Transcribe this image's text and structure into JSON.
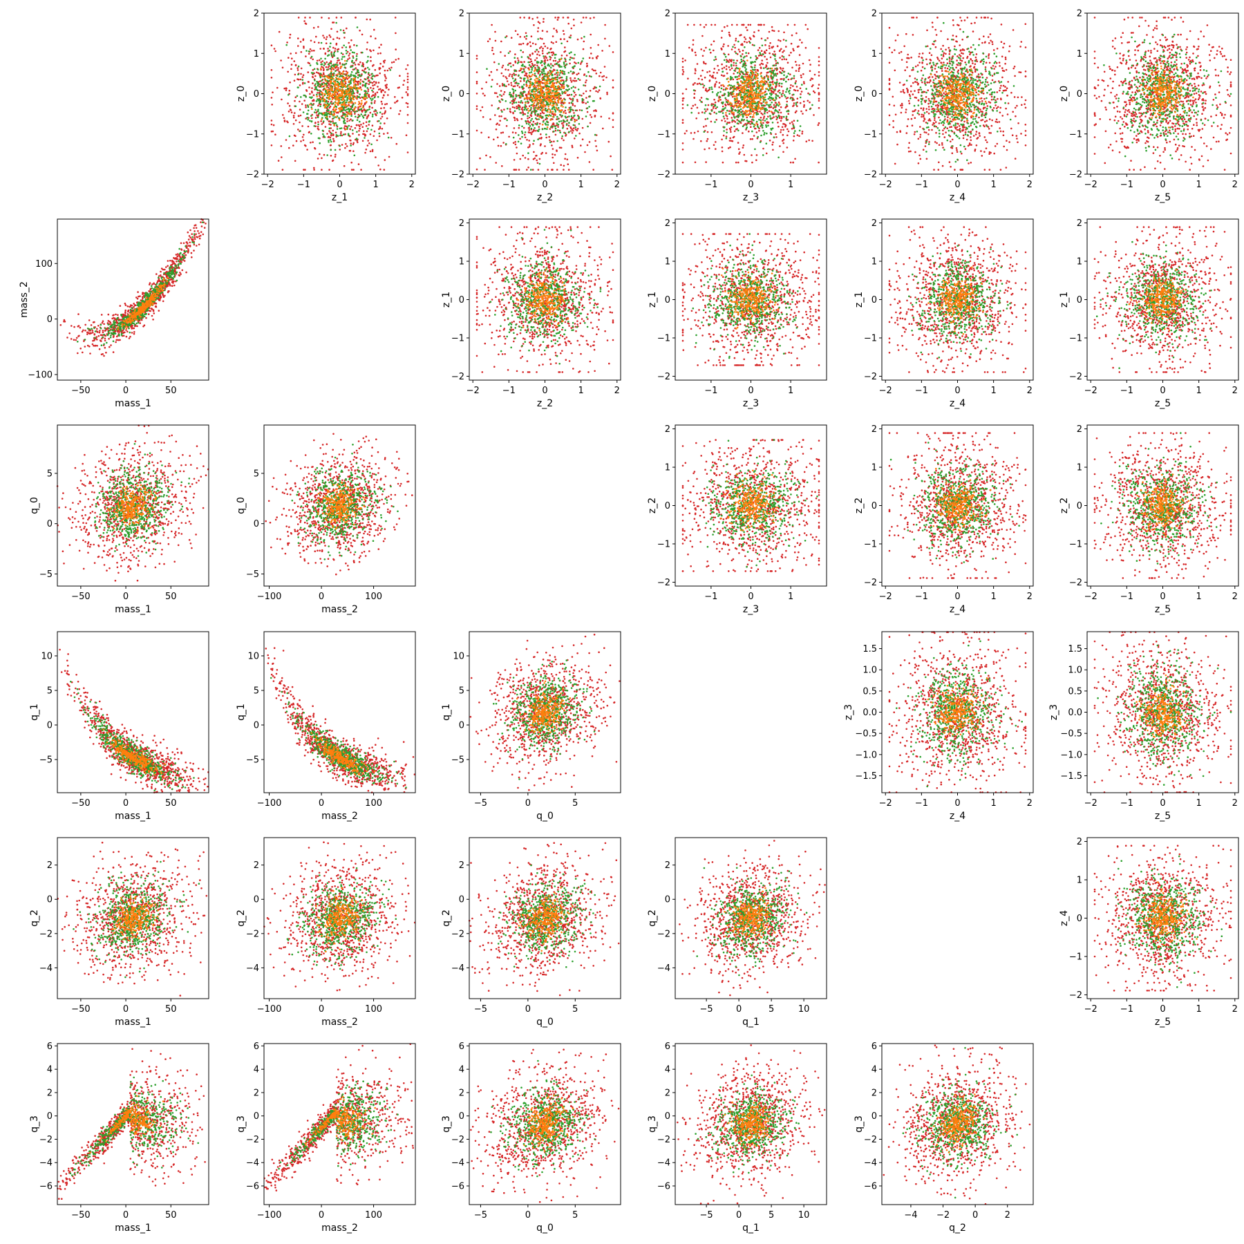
{
  "colors": {
    "outer": "#d62728",
    "middle": "#2ca02c",
    "inner": "#ff7f0e",
    "axes": "#000000",
    "background": "#ffffff"
  },
  "chart_data": {
    "type": "scatter",
    "grid": false,
    "legend": "none",
    "layout": "pair-plot",
    "note_values": "point clouds are approximations of the depicted distributions",
    "variables": {
      "mass_1": {
        "label": "mass_1",
        "lim": [
          -76,
          92
        ],
        "ticks": [
          -50,
          0,
          50
        ]
      },
      "mass_2": {
        "label": "mass_2",
        "lim": [
          -110,
          180
        ],
        "ticks": [
          -100,
          0,
          100
        ]
      },
      "q_0": {
        "label": "q_0",
        "lim": [
          -6.2,
          9.8
        ],
        "ticks": [
          -5,
          0,
          5
        ]
      },
      "q_1": {
        "label": "q_1",
        "lim": [
          -9.8,
          13.5
        ],
        "ticks": [
          -5,
          0,
          5,
          10
        ]
      },
      "q_2": {
        "label": "q_2",
        "lim": [
          -5.8,
          3.6
        ],
        "ticks": [
          -4,
          -2,
          0,
          2
        ]
      },
      "q_3": {
        "label": "q_3",
        "lim": [
          -7.6,
          6.2
        ],
        "ticks": [
          -6,
          -4,
          -2,
          0,
          2,
          4,
          6
        ]
      },
      "z_0": {
        "label": "z_0",
        "lim": [
          -2.0,
          2.0
        ],
        "ticks": [
          -2,
          -1,
          0,
          1,
          2
        ]
      },
      "z_1": {
        "label": "z_1",
        "lim": [
          -2.1,
          2.1
        ],
        "ticks": [
          -2,
          -1,
          0,
          1,
          2
        ]
      },
      "z_2": {
        "label": "z_2",
        "lim": [
          -2.1,
          2.1
        ],
        "ticks": [
          -2,
          -1,
          0,
          1,
          2
        ]
      },
      "z_3": {
        "label": "z_3",
        "lim": [
          -1.9,
          1.9
        ],
        "ticks": [
          -1,
          0,
          1
        ]
      },
      "z_4": {
        "label": "z_4",
        "lim": [
          -2.1,
          2.1
        ],
        "ticks": [
          -2,
          -1,
          0,
          1,
          2
        ]
      },
      "z_5": {
        "label": "z_5",
        "lim": [
          -2.1,
          2.1
        ],
        "ticks": [
          -2,
          -1,
          0,
          1,
          2
        ]
      },
      "z_3_row": {
        "label": "z_3",
        "lim": [
          -1.9,
          1.9
        ],
        "ticks": [
          -1.5,
          -1.0,
          -0.5,
          0.0,
          0.5,
          1.0,
          1.5
        ]
      }
    },
    "panels": [
      {
        "row": 0,
        "col": 1,
        "x": "z_1",
        "y": "z_0",
        "shape": "round"
      },
      {
        "row": 0,
        "col": 2,
        "x": "z_2",
        "y": "z_0",
        "shape": "round"
      },
      {
        "row": 0,
        "col": 3,
        "x": "z_3",
        "y": "z_0",
        "shape": "round"
      },
      {
        "row": 0,
        "col": 4,
        "x": "z_4",
        "y": "z_0",
        "shape": "round"
      },
      {
        "row": 0,
        "col": 5,
        "x": "z_5",
        "y": "z_0",
        "shape": "round"
      },
      {
        "row": 1,
        "col": 0,
        "x": "mass_1",
        "y": "mass_2",
        "shape": "mass12"
      },
      {
        "row": 1,
        "col": 2,
        "x": "z_2",
        "y": "z_1",
        "shape": "round"
      },
      {
        "row": 1,
        "col": 3,
        "x": "z_3",
        "y": "z_1",
        "shape": "round"
      },
      {
        "row": 1,
        "col": 4,
        "x": "z_4",
        "y": "z_1",
        "shape": "round"
      },
      {
        "row": 1,
        "col": 5,
        "x": "z_5",
        "y": "z_1",
        "shape": "round"
      },
      {
        "row": 2,
        "col": 0,
        "x": "mass_1",
        "y": "q_0",
        "shape": "blob"
      },
      {
        "row": 2,
        "col": 1,
        "x": "mass_2",
        "y": "q_0",
        "shape": "blob"
      },
      {
        "row": 2,
        "col": 3,
        "x": "z_3",
        "y": "z_2",
        "shape": "round"
      },
      {
        "row": 2,
        "col": 4,
        "x": "z_4",
        "y": "z_2",
        "shape": "round"
      },
      {
        "row": 2,
        "col": 5,
        "x": "z_5",
        "y": "z_2",
        "shape": "round"
      },
      {
        "row": 3,
        "col": 0,
        "x": "mass_1",
        "y": "q_1",
        "shape": "decay"
      },
      {
        "row": 3,
        "col": 1,
        "x": "mass_2",
        "y": "q_1",
        "shape": "decay"
      },
      {
        "row": 3,
        "col": 2,
        "x": "q_0",
        "y": "q_1",
        "shape": "blob"
      },
      {
        "row": 3,
        "col": 4,
        "x": "z_4",
        "y": "z_3_row",
        "shape": "round"
      },
      {
        "row": 3,
        "col": 5,
        "x": "z_5",
        "y": "z_3_row",
        "shape": "round"
      },
      {
        "row": 4,
        "col": 0,
        "x": "mass_1",
        "y": "q_2",
        "shape": "blob"
      },
      {
        "row": 4,
        "col": 1,
        "x": "mass_2",
        "y": "q_2",
        "shape": "blob"
      },
      {
        "row": 4,
        "col": 2,
        "x": "q_0",
        "y": "q_2",
        "shape": "blob"
      },
      {
        "row": 4,
        "col": 3,
        "x": "q_1",
        "y": "q_2",
        "shape": "blob"
      },
      {
        "row": 4,
        "col": 5,
        "x": "z_5",
        "y": "z_4",
        "shape": "round"
      },
      {
        "row": 5,
        "col": 0,
        "x": "mass_1",
        "y": "q_3",
        "shape": "knee"
      },
      {
        "row": 5,
        "col": 1,
        "x": "mass_2",
        "y": "q_3",
        "shape": "knee"
      },
      {
        "row": 5,
        "col": 2,
        "x": "q_0",
        "y": "q_3",
        "shape": "blob"
      },
      {
        "row": 5,
        "col": 3,
        "x": "q_1",
        "y": "q_3",
        "shape": "blob"
      },
      {
        "row": 5,
        "col": 4,
        "x": "q_2",
        "y": "q_3",
        "shape": "blob"
      }
    ]
  }
}
